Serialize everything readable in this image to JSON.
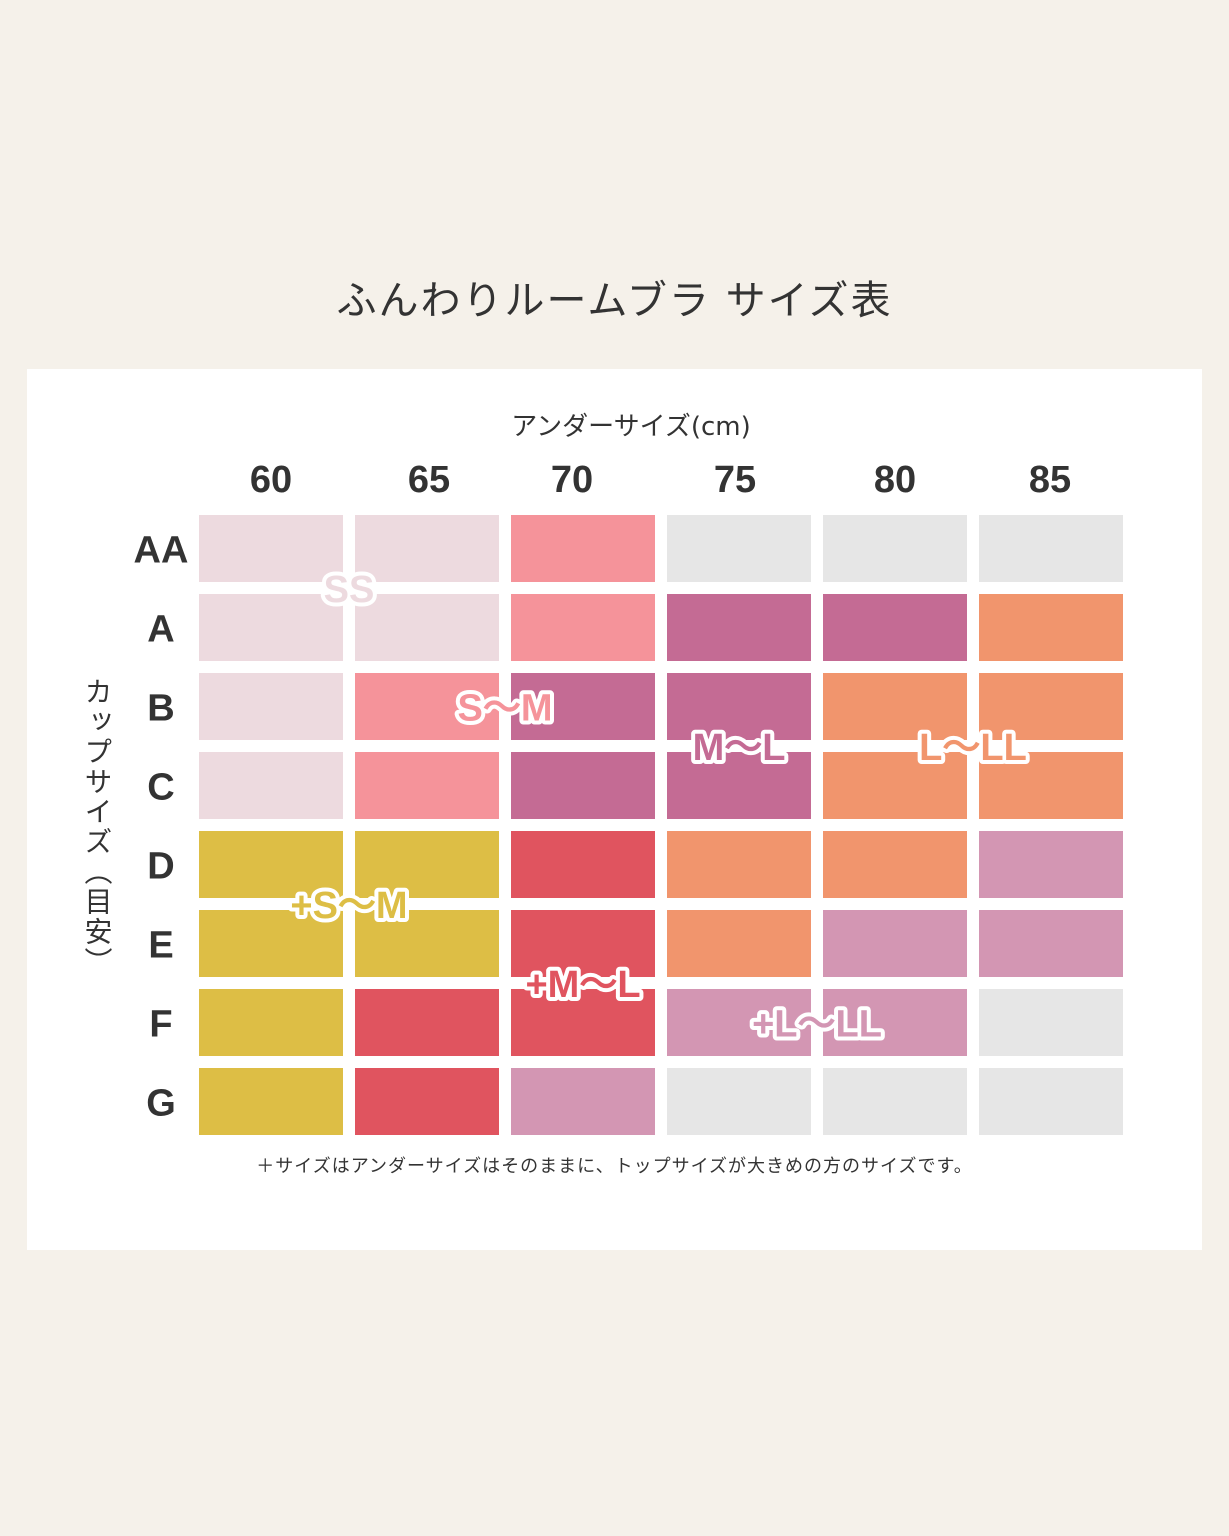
{
  "title": "ふんわりルームブラ サイズ表",
  "footnote": "＋サイズはアンダーサイズはそのままに、トップサイズが大きめの方のサイズです。",
  "colors": {
    "SS": "#eddadf",
    "S~M": "#f5939a",
    "M~L": "#c46b94",
    "L~LL": "#f1956d",
    "+S~M": "#ddbe45",
    "+M~L": "#e0545f",
    "+L~LL": "#d396b3",
    "none": "#e6e6e6"
  },
  "chart_data": {
    "type": "heatmap",
    "title": "ふんわりルームブラ サイズ表",
    "xlabel": "アンダーサイズ(cm)",
    "ylabel": "カップサイズ（目安）",
    "x": [
      "60",
      "65",
      "70",
      "75",
      "80",
      "85"
    ],
    "y": [
      "AA",
      "A",
      "B",
      "C",
      "D",
      "E",
      "F",
      "G"
    ],
    "cells": [
      [
        "SS",
        "SS",
        "S~M",
        "none",
        "none",
        "none"
      ],
      [
        "SS",
        "SS",
        "S~M",
        "M~L",
        "M~L",
        "L~LL"
      ],
      [
        "SS",
        "S~M",
        "M~L",
        "M~L",
        "L~LL",
        "L~LL"
      ],
      [
        "SS",
        "S~M",
        "M~L",
        "M~L",
        "L~LL",
        "L~LL"
      ],
      [
        "+S~M",
        "+S~M",
        "+M~L",
        "L~LL",
        "L~LL",
        "+L~LL"
      ],
      [
        "+S~M",
        "+S~M",
        "+M~L",
        "L~LL",
        "+L~LL",
        "+L~LL"
      ],
      [
        "+S~M",
        "+M~L",
        "+M~L",
        "+L~LL",
        "+L~LL",
        "none"
      ],
      [
        "+S~M",
        "+M~L",
        "+L~LL",
        "none",
        "none",
        "none"
      ]
    ],
    "size_labels": [
      {
        "text": "SS",
        "key": "SS",
        "col": 1,
        "row": 1
      },
      {
        "text": "S～M",
        "key": "S~M",
        "col": 2,
        "row": 2.5
      },
      {
        "text": "M～L",
        "key": "M~L",
        "col": 3.5,
        "row": 3
      },
      {
        "text": "L～LL",
        "key": "L~LL",
        "col": 5,
        "row": 3
      },
      {
        "text": "+S～M",
        "key": "+S~M",
        "col": 1,
        "row": 5
      },
      {
        "text": "+M～L",
        "key": "+M~L",
        "col": 2.5,
        "row": 6
      },
      {
        "text": "+L～LL",
        "key": "+L~LL",
        "col": 4,
        "row": 6.5
      }
    ]
  }
}
